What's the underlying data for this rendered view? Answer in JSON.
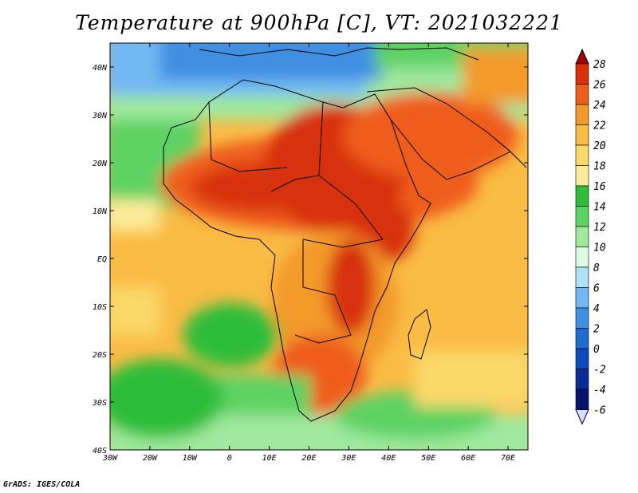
{
  "title": "Temperature at 900hPa [C], VT: 2021032221",
  "credit": "GrADS: IGES/COLA",
  "map": {
    "lon_labels": [
      "30W",
      "20W",
      "10W",
      "0",
      "10E",
      "20E",
      "30E",
      "40E",
      "50E",
      "60E",
      "70E"
    ],
    "lat_labels": [
      "40N",
      "30N",
      "20N",
      "10N",
      "EQ",
      "10S",
      "20S",
      "30S",
      "40S"
    ],
    "lon_range": [
      -30,
      75
    ],
    "lat_range": [
      -40,
      45
    ]
  },
  "colorbar": {
    "levels": [
      "28",
      "26",
      "24",
      "22",
      "20",
      "18",
      "16",
      "14",
      "12",
      "10",
      "8",
      "6",
      "4",
      "2",
      "0",
      "-2",
      "-4",
      "-6"
    ],
    "colors": [
      "#a50000",
      "#d7300b",
      "#ef5d1d",
      "#f39a2c",
      "#f9bc45",
      "#fbd86b",
      "#fbeb9a",
      "#2fbd3a",
      "#5dd264",
      "#9fe89d",
      "#dcfbe0",
      "#aee0f7",
      "#72b8f2",
      "#3f8fe2",
      "#1f6bd0",
      "#0d4cb8",
      "#0a2d95",
      "#06156a",
      "#d8dbff"
    ]
  },
  "regions": {
    "ocean_south": "#5dd264",
    "ocean_south_far": "#2fbd3a",
    "north_cool": "#3f8fe2",
    "hot_core": "#d7300b"
  }
}
